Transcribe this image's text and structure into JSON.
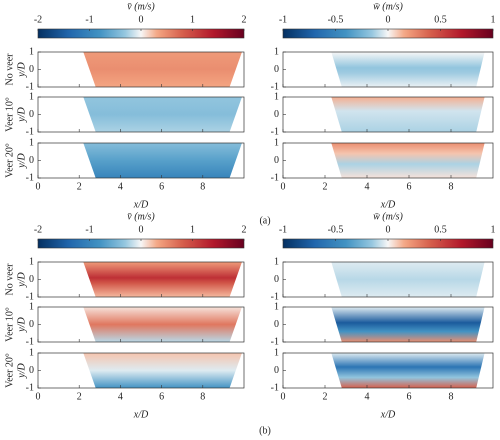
{
  "subfigures": [
    {
      "label": "(a)",
      "colorbars": [
        {
          "title": "v̄ (m/s)",
          "lim": [
            -2,
            2
          ],
          "ticks": [
            -2,
            -1,
            0,
            1,
            2
          ]
        },
        {
          "title": "w̄ (m/s)",
          "lim": [
            -1,
            1
          ],
          "ticks": [
            -1,
            -0.5,
            0,
            0.5,
            1
          ]
        }
      ]
    },
    {
      "label": "(b)",
      "colorbars": [
        {
          "title": "v̄ (m/s)",
          "lim": [
            -2,
            2
          ],
          "ticks": [
            -2,
            -1,
            0,
            1,
            2
          ]
        },
        {
          "title": "w̄ (m/s)",
          "lim": [
            -1,
            1
          ],
          "ticks": [
            -1,
            -0.5,
            0,
            0.5,
            1
          ]
        }
      ]
    }
  ],
  "rows": [
    "No veer",
    "Veer 10°",
    "Veer 20°"
  ],
  "ylabel": "y/D",
  "xlabel": "x/D",
  "xlim": [
    0,
    10
  ],
  "xticks": [
    0,
    2,
    4,
    6,
    8
  ],
  "ylim": [
    -1,
    1
  ],
  "yticks": [
    -1,
    0,
    1
  ]
}
